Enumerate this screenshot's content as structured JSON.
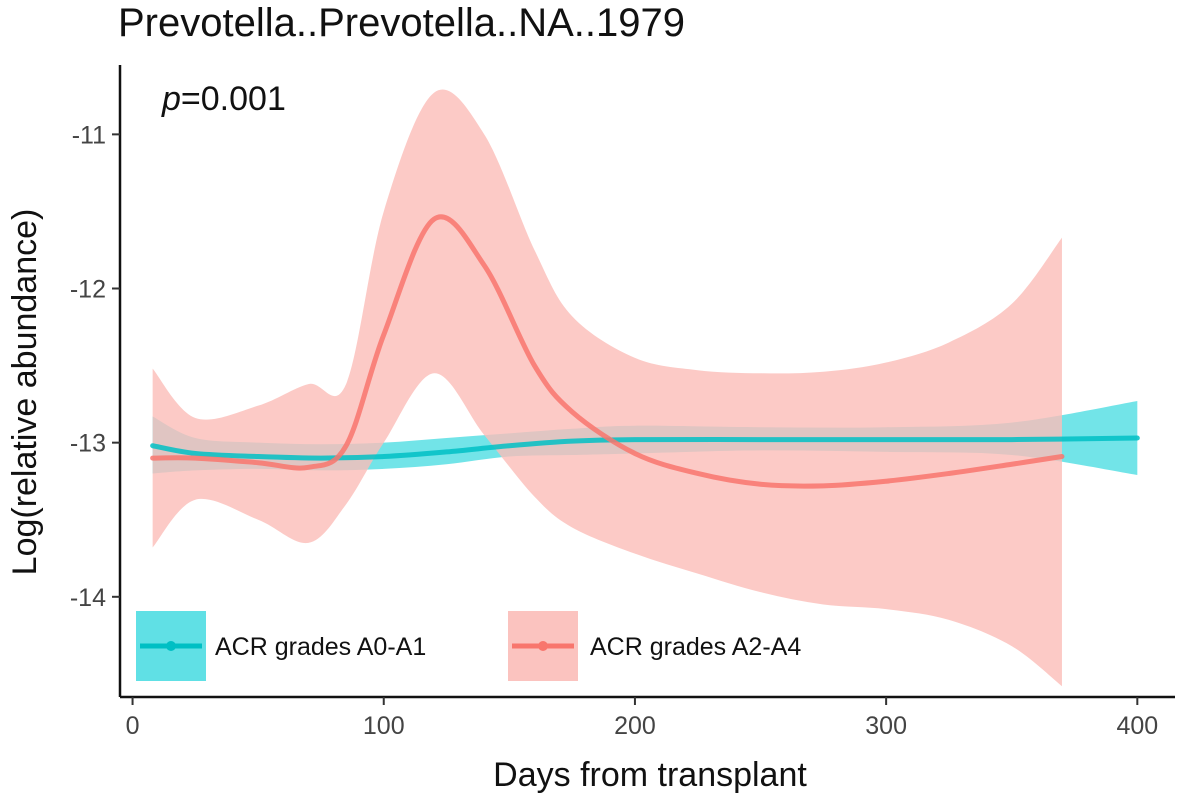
{
  "chart_data": {
    "type": "line",
    "title": "Prevotella..Prevotella..NA..1979",
    "xlabel": "Days from transplant",
    "ylabel": "Log(relative abundance)",
    "xlim": [
      -5,
      415
    ],
    "ylim": [
      -14.65,
      -10.55
    ],
    "x_ticks": [
      0,
      100,
      200,
      300,
      400
    ],
    "x_tick_labels": [
      "0",
      "100",
      "200",
      "300",
      "400"
    ],
    "y_ticks": [
      -14,
      -13,
      -12,
      -11
    ],
    "y_tick_labels": [
      "-14",
      "-13",
      "-12",
      "-11"
    ],
    "annotation": {
      "italic": "p",
      "rest": "=0.001"
    },
    "legend_position": "bottom-left",
    "series": [
      {
        "name": "ACR grades A0-A1",
        "color": "#00BFC4",
        "ribbon_color": "#4FDDE2",
        "x": [
          8,
          25,
          50,
          75,
          100,
          125,
          150,
          175,
          200,
          250,
          300,
          350,
          400
        ],
        "y": [
          -13.02,
          -13.07,
          -13.09,
          -13.1,
          -13.09,
          -13.06,
          -13.02,
          -12.99,
          -12.98,
          -12.98,
          -12.98,
          -12.98,
          -12.97
        ],
        "lower": [
          -13.2,
          -13.18,
          -13.17,
          -13.18,
          -13.17,
          -13.14,
          -13.09,
          -13.08,
          -13.07,
          -13.05,
          -13.06,
          -13.08,
          -13.21
        ],
        "upper": [
          -12.83,
          -12.97,
          -13.0,
          -13.01,
          -13.0,
          -12.97,
          -12.94,
          -12.91,
          -12.89,
          -12.9,
          -12.9,
          -12.87,
          -12.73
        ]
      },
      {
        "name": "ACR grades A2-A4",
        "color": "#F8766D",
        "ribbon_color": "#FBBDB8",
        "x": [
          8,
          25,
          50,
          70,
          85,
          100,
          120,
          140,
          160,
          175,
          200,
          225,
          250,
          275,
          300,
          325,
          350,
          370
        ],
        "y": [
          -13.1,
          -13.1,
          -13.13,
          -13.16,
          -13.02,
          -12.3,
          -11.55,
          -11.85,
          -12.5,
          -12.8,
          -13.07,
          -13.2,
          -13.27,
          -13.28,
          -13.25,
          -13.2,
          -13.14,
          -13.09
        ],
        "lower": [
          -13.68,
          -13.37,
          -13.5,
          -13.65,
          -13.4,
          -13.0,
          -12.55,
          -12.95,
          -13.35,
          -13.55,
          -13.72,
          -13.85,
          -13.97,
          -14.05,
          -14.08,
          -14.15,
          -14.32,
          -14.58
        ],
        "upper": [
          -12.52,
          -12.84,
          -12.76,
          -12.62,
          -12.62,
          -11.5,
          -10.73,
          -11.0,
          -11.75,
          -12.18,
          -12.45,
          -12.53,
          -12.55,
          -12.54,
          -12.48,
          -12.35,
          -12.1,
          -11.67
        ]
      }
    ]
  }
}
